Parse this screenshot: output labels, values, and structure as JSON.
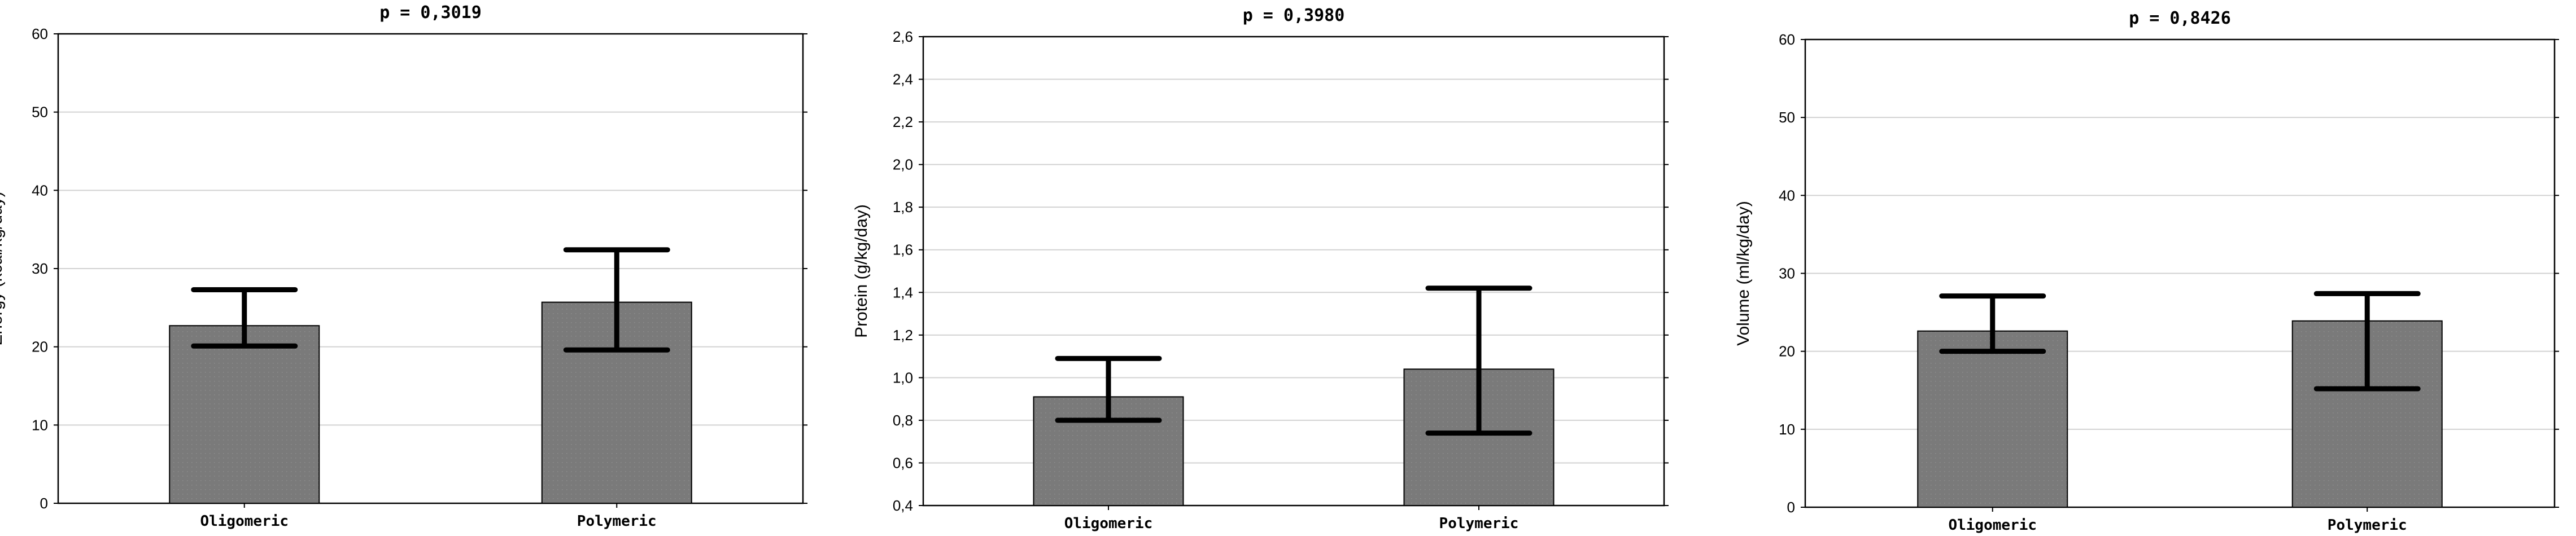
{
  "chart_data": [
    {
      "type": "bar",
      "title": "p = 0,3019",
      "ylabel": "Energy (kcal/kg/day)",
      "xlabel": "",
      "categories": [
        "Oligomeric",
        "Polymeric"
      ],
      "values": [
        22.7,
        25.7
      ],
      "error_low": [
        20.1,
        19.6
      ],
      "error_high": [
        27.3,
        32.4
      ],
      "ylim": [
        0,
        60
      ],
      "yticks": [
        "0",
        "10",
        "20",
        "30",
        "40",
        "50",
        "60"
      ],
      "grid": true,
      "bar_color": "#7a7a7a"
    },
    {
      "type": "bar",
      "title": "p = 0,3980",
      "ylabel": "Protein (g/kg/day)",
      "xlabel": "",
      "categories": [
        "Oligomeric",
        "Polymeric"
      ],
      "values": [
        0.91,
        1.04
      ],
      "error_low": [
        0.8,
        0.74
      ],
      "error_high": [
        1.09,
        1.42
      ],
      "ylim": [
        0.4,
        2.6
      ],
      "yticks": [
        "0,4",
        "0,6",
        "0,8",
        "1,0",
        "1,2",
        "1,4",
        "1,6",
        "1,8",
        "2,0",
        "2,2",
        "2,4",
        "2,6"
      ],
      "grid": true,
      "bar_color": "#7a7a7a"
    },
    {
      "type": "bar",
      "title": "p = 0,8426",
      "ylabel": "Volume (ml/kg/day)",
      "xlabel": "",
      "categories": [
        "Oligomeric",
        "Polymeric"
      ],
      "values": [
        22.6,
        23.9
      ],
      "error_low": [
        20.0,
        15.2
      ],
      "error_high": [
        27.1,
        27.4
      ],
      "ylim": [
        0,
        60
      ],
      "yticks": [
        "0",
        "10",
        "20",
        "30",
        "40",
        "50",
        "60"
      ],
      "grid": true,
      "bar_color": "#7a7a7a"
    }
  ]
}
